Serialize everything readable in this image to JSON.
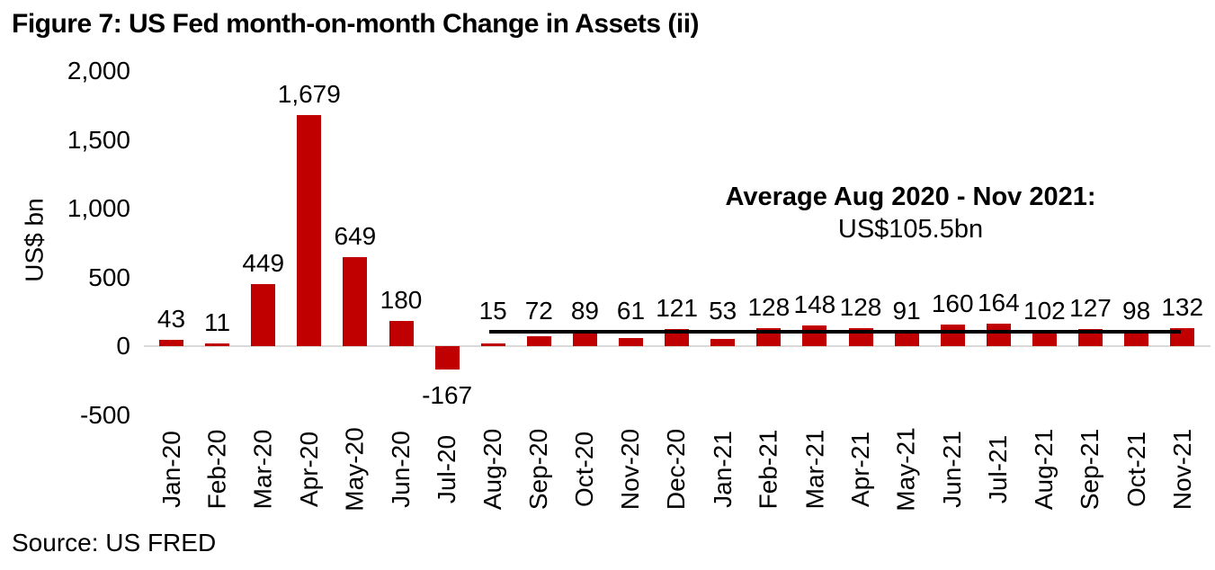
{
  "title": "Figure 7: US Fed month-on-month Change in Assets (ii)",
  "source": "Source: US FRED",
  "annotation": {
    "line1": "Average Aug 2020 - Nov 2021:",
    "line2": "US$105.5bn"
  },
  "colors": {
    "bar": "#C00000",
    "average_line": "#000000",
    "zero_axis_line": "#D9D9D9",
    "text": "#000000"
  },
  "chart_data": {
    "type": "bar",
    "title": "Figure 7: US Fed month-on-month Change in Assets (ii)",
    "ylabel": "US$ bn",
    "xlabel": "",
    "categories": [
      "Jan-20",
      "Feb-20",
      "Mar-20",
      "Apr-20",
      "May-20",
      "Jun-20",
      "Jul-20",
      "Aug-20",
      "Sep-20",
      "Oct-20",
      "Nov-20",
      "Dec-20",
      "Jan-21",
      "Feb-21",
      "Mar-21",
      "Apr-21",
      "May-21",
      "Jun-21",
      "Jul-21",
      "Aug-21",
      "Sep-21",
      "Oct-21",
      "Nov-21"
    ],
    "values": [
      43,
      11,
      449,
      1679,
      649,
      180,
      -167,
      15,
      72,
      89,
      61,
      121,
      53,
      128,
      148,
      128,
      91,
      160,
      164,
      102,
      127,
      98,
      132
    ],
    "value_labels": [
      "43",
      "11",
      "449",
      "1,679",
      "649",
      "180",
      "-167",
      "15",
      "72",
      "89",
      "61",
      "121",
      "53",
      "128",
      "148",
      "128",
      "91",
      "160",
      "164",
      "102",
      "127",
      "98",
      "132"
    ],
    "yticks": {
      "values": [
        2000,
        1500,
        1000,
        500,
        0,
        -500
      ],
      "labels": [
        "2,000",
        "1,500",
        "1,000",
        "500",
        "0",
        "-500"
      ]
    },
    "ylim": [
      -500,
      2000
    ],
    "grid": false,
    "legend": "none",
    "average_line": {
      "value": 105.5,
      "start_category": "Aug-20",
      "end_category": "Nov-21",
      "caption": "Average Aug 2020 - Nov 2021: US$105.5bn"
    }
  }
}
